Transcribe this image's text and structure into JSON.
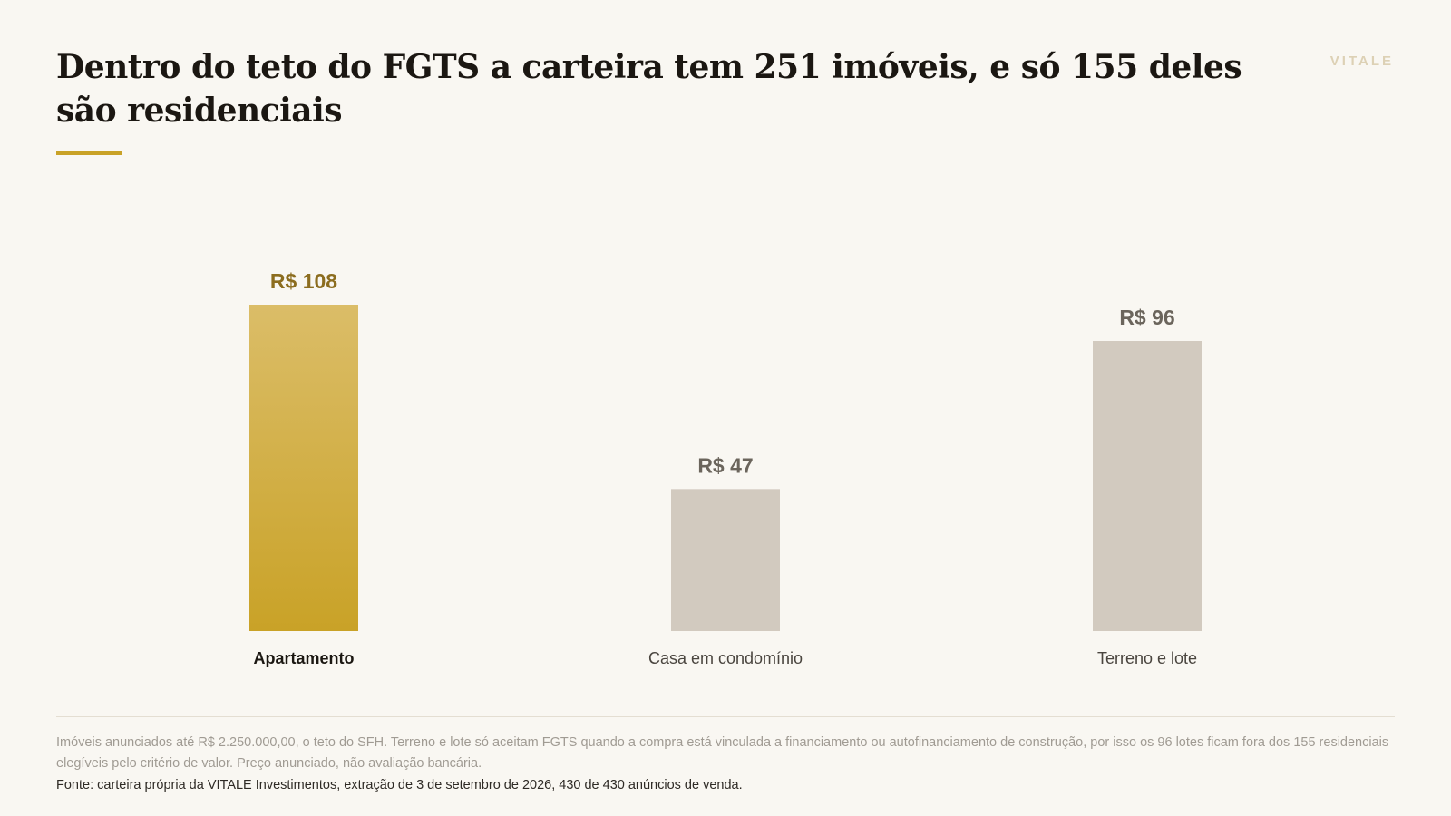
{
  "header": {
    "title": "Dentro do teto do FGTS a carteira tem 251 imóveis, e só 155 deles são residenciais",
    "brand": "VITALE"
  },
  "colors": {
    "background": "#f9f7f2",
    "highlight_top": "#dbbd68",
    "highlight_bottom": "#c9a227",
    "highlight_label": "#8c6d1f",
    "muted_bar": "#d2cabf",
    "muted_label": "#6b655c",
    "category_highlight": "#1b1712",
    "category_muted": "#4a453f"
  },
  "chart_data": {
    "type": "bar",
    "categories": [
      "Apartamento",
      "Casa em condomínio",
      "Terreno e lote"
    ],
    "values": [
      108,
      47,
      96
    ],
    "value_labels": [
      "R$ 108",
      "R$ 47",
      "R$ 96"
    ],
    "highlight": "Apartamento",
    "ylim": [
      0,
      108
    ]
  },
  "footer": {
    "note": "Imóveis anunciados até R$ 2.250.000,00, o teto do SFH. Terreno e lote só aceitam FGTS quando a compra está vinculada a financiamento ou autofinanciamento de construção, por isso os 96 lotes ficam fora dos 155 residenciais elegíveis pelo critério de valor. Preço anunciado, não avaliação bancária.",
    "source": "Fonte: carteira própria da VITALE Investimentos, extração de 3 de setembro de 2026, 430 de 430 anúncios de venda."
  }
}
